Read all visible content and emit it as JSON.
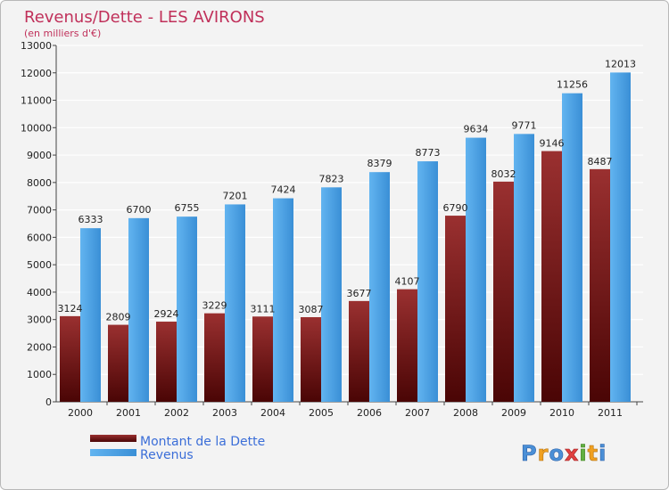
{
  "colors": {
    "dette": "#7a1a1a",
    "revenus": "#4aa1e6",
    "title": "#c0305a",
    "legend_text": "#3b6ed8"
  },
  "chart_data": {
    "type": "bar",
    "title": "Revenus/Dette - LES AVIRONS",
    "subtitle": "(en milliers d'€)",
    "categories": [
      "2000",
      "2001",
      "2002",
      "2003",
      "2004",
      "2005",
      "2006",
      "2007",
      "2008",
      "2009",
      "2010",
      "2011"
    ],
    "series": [
      {
        "name": "Montant de la Dette",
        "values": [
          3124,
          2809,
          2924,
          3229,
          3111,
          3087,
          3677,
          4107,
          6790,
          8032,
          9146,
          8487
        ]
      },
      {
        "name": "Revenus",
        "values": [
          6333,
          6700,
          6755,
          7201,
          7424,
          7823,
          8379,
          8773,
          9634,
          9771,
          11256,
          12013
        ]
      }
    ],
    "ylim": [
      0,
      13000
    ],
    "yticks": [
      0,
      1000,
      2000,
      3000,
      4000,
      5000,
      6000,
      7000,
      8000,
      9000,
      10000,
      11000,
      12000,
      13000
    ],
    "grid": true,
    "legend_position": "bottom-left"
  },
  "logo": {
    "text": "Proxiti"
  }
}
